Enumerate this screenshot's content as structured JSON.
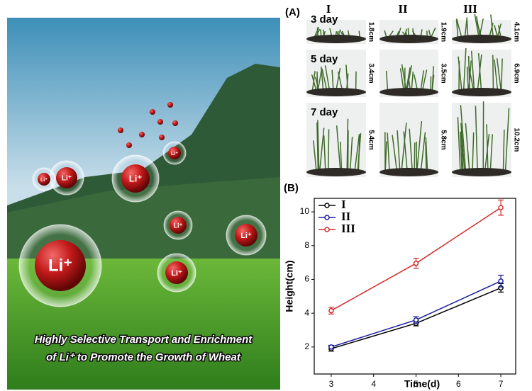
{
  "cover": {
    "bubble_label": "Li⁺",
    "caption": [
      "Highly Selective Transport and Enrichment",
      "of Li⁺ to Promote the Growth of Wheat"
    ]
  },
  "panel_a": {
    "label": "(A)",
    "columns": [
      "I",
      "II",
      "III"
    ],
    "rows": [
      {
        "day": "3 day",
        "heights": [
          "1.8cm",
          "1.9cm",
          "4.1cm"
        ]
      },
      {
        "day": "5 day",
        "heights": [
          "3.4cm",
          "3.5cm",
          "6.9cm"
        ]
      },
      {
        "day": "7 day",
        "heights": [
          "5.4cm",
          "5.8cm",
          "10.2cm"
        ]
      }
    ]
  },
  "chart_data": {
    "type": "line",
    "panel_label": "(B)",
    "x_label": "Time(d)",
    "y_label": "Height(cm)",
    "x": [
      3,
      5,
      7
    ],
    "series": [
      {
        "name": "I",
        "color": "#000000",
        "values": [
          1.9,
          3.4,
          5.5
        ],
        "errors": [
          0.15,
          0.15,
          0.25
        ]
      },
      {
        "name": "II",
        "color": "#1a1aa0",
        "values": [
          2.0,
          3.6,
          5.9
        ],
        "errors": [
          0.1,
          0.2,
          0.35
        ]
      },
      {
        "name": "III",
        "color": "#d42a2a",
        "values": [
          4.15,
          6.95,
          10.25
        ],
        "errors": [
          0.2,
          0.3,
          0.45
        ]
      }
    ],
    "xlim": [
      2.6,
      7.35
    ],
    "xticks": [
      3,
      4,
      5,
      6,
      7
    ],
    "ylim": [
      0.4,
      10.8
    ],
    "yticks": [
      2,
      4,
      6,
      8,
      10
    ],
    "legend": "top-left"
  }
}
